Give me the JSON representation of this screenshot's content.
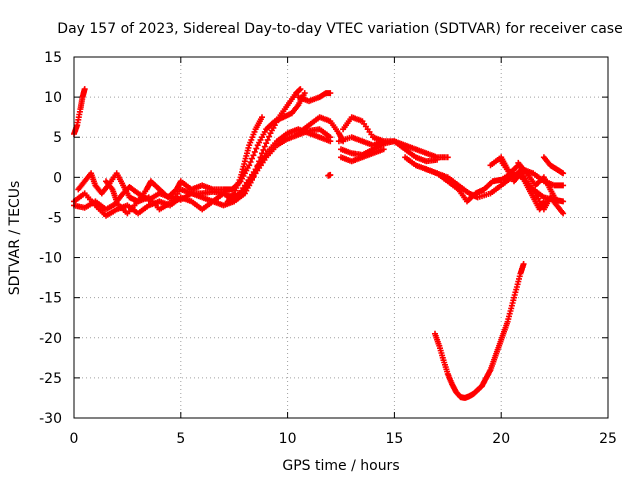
{
  "chart_data": {
    "type": "scatter",
    "title": "Day 157 of 2023, Sidereal Day-to-day VTEC variation (SDTVAR) for receiver case",
    "xlabel": "GPS time / hours",
    "ylabel": "SDTVAR / TECUs",
    "xlim": [
      0,
      25
    ],
    "ylim": [
      -30,
      15
    ],
    "xticks": [
      0,
      5,
      10,
      15,
      20,
      25
    ],
    "yticks": [
      -30,
      -25,
      -20,
      -15,
      -10,
      -5,
      0,
      5,
      10,
      15
    ],
    "grid": true,
    "marker": "+",
    "series": [
      {
        "name": "SDTVAR",
        "color": "#ff0000",
        "tracks": [
          [
            [
              0.0,
              5.4
            ],
            [
              0.15,
              6.5
            ],
            [
              0.3,
              8.5
            ],
            [
              0.4,
              10.0
            ],
            [
              0.5,
              11.0
            ]
          ],
          [
            [
              0.0,
              -3.0
            ],
            [
              0.5,
              -2.0
            ],
            [
              1.0,
              -3.5
            ],
            [
              1.5,
              -4.8
            ],
            [
              2.0,
              -4.0
            ],
            [
              2.5,
              -3.5
            ],
            [
              3.0,
              -4.5
            ],
            [
              3.5,
              -3.5
            ],
            [
              4.0,
              -3.0
            ],
            [
              4.5,
              -3.5
            ],
            [
              5.0,
              -2.5
            ],
            [
              5.5,
              -3.0
            ],
            [
              6.0,
              -4.0
            ],
            [
              6.5,
              -3.0
            ],
            [
              7.0,
              -2.0
            ],
            [
              7.5,
              -3.0
            ],
            [
              8.0,
              -2.0
            ],
            [
              8.4,
              0.0
            ],
            [
              8.8,
              3.0
            ],
            [
              9.2,
              5.5
            ],
            [
              9.6,
              7.5
            ],
            [
              10.0,
              9.0
            ],
            [
              10.4,
              10.5
            ],
            [
              10.6,
              11.0
            ]
          ],
          [
            [
              0.2,
              -1.5
            ],
            [
              0.5,
              -0.5
            ],
            [
              0.8,
              0.5
            ],
            [
              1.0,
              -1.0
            ],
            [
              1.3,
              -2.0
            ],
            [
              1.6,
              -1.0
            ],
            [
              2.0,
              0.5
            ],
            [
              2.3,
              -1.0
            ],
            [
              2.6,
              -2.5
            ],
            [
              3.0,
              -3.0
            ],
            [
              3.4,
              -1.5
            ],
            [
              3.6,
              -0.5
            ],
            [
              4.0,
              -1.5
            ],
            [
              4.4,
              -2.5
            ],
            [
              4.8,
              -1.5
            ],
            [
              5.0,
              -0.5
            ],
            [
              5.5,
              -1.5
            ],
            [
              6.0,
              -1.0
            ],
            [
              6.5,
              -1.5
            ],
            [
              7.0,
              -1.5
            ],
            [
              7.4,
              -1.5
            ],
            [
              7.8,
              -0.5
            ],
            [
              8.2,
              1.5
            ],
            [
              8.6,
              4.0
            ],
            [
              9.0,
              6.0
            ],
            [
              9.4,
              7.0
            ],
            [
              9.8,
              7.5
            ],
            [
              10.2,
              8.0
            ],
            [
              10.5,
              9.0
            ],
            [
              10.8,
              10.5
            ]
          ],
          [
            [
              0.0,
              -3.5
            ],
            [
              0.5,
              -3.8
            ],
            [
              1.0,
              -3.0
            ],
            [
              1.5,
              -4.0
            ],
            [
              2.0,
              -3.2
            ],
            [
              2.5,
              -4.5
            ],
            [
              3.0,
              -3.0
            ],
            [
              3.5,
              -2.5
            ],
            [
              4.0,
              -4.0
            ],
            [
              4.5,
              -3.2
            ],
            [
              5.0,
              -1.5
            ],
            [
              5.5,
              -2.0
            ],
            [
              6.0,
              -2.5
            ],
            [
              6.5,
              -3.0
            ],
            [
              7.0,
              -3.5
            ],
            [
              7.5,
              -3.0
            ],
            [
              8.0,
              -1.0
            ],
            [
              8.5,
              1.0
            ],
            [
              9.0,
              3.0
            ],
            [
              9.5,
              4.5
            ],
            [
              10.0,
              5.5
            ],
            [
              10.5,
              6.0
            ],
            [
              11.0,
              5.5
            ],
            [
              11.5,
              5.0
            ],
            [
              12.0,
              4.5
            ]
          ],
          [
            [
              1.5,
              -0.5
            ],
            [
              1.8,
              -1.5
            ],
            [
              2.0,
              -3.0
            ],
            [
              2.3,
              -2.0
            ],
            [
              2.6,
              -1.2
            ],
            [
              3.0,
              -2.0
            ],
            [
              3.5,
              -2.8
            ],
            [
              4.0,
              -2.0
            ],
            [
              4.5,
              -2.5
            ],
            [
              5.0,
              -2.8
            ],
            [
              5.5,
              -2.0
            ],
            [
              6.0,
              -2.0
            ],
            [
              6.5,
              -1.8
            ],
            [
              7.0,
              -2.0
            ],
            [
              7.5,
              -2.5
            ],
            [
              8.0,
              -1.5
            ],
            [
              8.5,
              0.5
            ],
            [
              9.0,
              2.5
            ],
            [
              9.5,
              4.0
            ],
            [
              10.0,
              4.8
            ],
            [
              10.5,
              5.3
            ],
            [
              11.0,
              5.8
            ],
            [
              11.5,
              6.0
            ],
            [
              12.0,
              5.0
            ]
          ],
          [
            [
              7.2,
              -3.0
            ],
            [
              7.5,
              -2.0
            ],
            [
              7.8,
              0.0
            ],
            [
              8.0,
              2.0
            ],
            [
              8.2,
              4.0
            ],
            [
              8.5,
              6.0
            ],
            [
              8.8,
              7.5
            ]
          ],
          [
            [
              10.5,
              10.0
            ],
            [
              11.0,
              9.5
            ],
            [
              11.5,
              10.0
            ],
            [
              11.8,
              10.5
            ],
            [
              12.0,
              10.5
            ]
          ],
          [
            [
              10.5,
              5.5
            ],
            [
              11.0,
              6.5
            ],
            [
              11.5,
              7.5
            ],
            [
              12.0,
              7.0
            ],
            [
              12.4,
              5.5
            ],
            [
              12.6,
              4.5
            ]
          ],
          [
            [
              12.6,
              6.0
            ],
            [
              13.0,
              7.5
            ],
            [
              13.5,
              7.0
            ],
            [
              14.0,
              5.0
            ],
            [
              14.5,
              4.5
            ]
          ],
          [
            [
              12.4,
              4.5
            ],
            [
              13.0,
              5.0
            ],
            [
              13.5,
              4.5
            ],
            [
              14.0,
              4.0
            ],
            [
              14.5,
              4.5
            ],
            [
              15.0,
              4.5
            ],
            [
              15.5,
              4.0
            ],
            [
              16.0,
              3.5
            ],
            [
              16.5,
              3.0
            ],
            [
              17.0,
              2.5
            ],
            [
              17.5,
              2.5
            ]
          ],
          [
            [
              12.5,
              3.5
            ],
            [
              13.0,
              3.0
            ],
            [
              13.5,
              2.8
            ],
            [
              14.0,
              3.5
            ],
            [
              14.5,
              4.2
            ],
            [
              15.0,
              4.5
            ],
            [
              15.5,
              3.5
            ],
            [
              16.0,
              2.5
            ],
            [
              16.5,
              2.0
            ],
            [
              17.0,
              2.2
            ]
          ],
          [
            [
              12.5,
              2.5
            ],
            [
              13.0,
              2.0
            ],
            [
              13.5,
              2.5
            ],
            [
              14.0,
              3.0
            ],
            [
              14.5,
              3.5
            ]
          ],
          [
            [
              15.5,
              2.5
            ],
            [
              16.0,
              1.5
            ],
            [
              16.5,
              1.0
            ],
            [
              17.0,
              0.5
            ],
            [
              17.5,
              0.0
            ],
            [
              18.0,
              -1.0
            ],
            [
              18.5,
              -2.0
            ],
            [
              18.9,
              -2.5
            ],
            [
              19.5,
              -2.0
            ],
            [
              20.0,
              -1.0
            ],
            [
              20.5,
              0.0
            ],
            [
              21.0,
              1.0
            ],
            [
              21.5,
              0.5
            ],
            [
              22.0,
              -0.5
            ],
            [
              22.5,
              -1.0
            ],
            [
              22.9,
              -1.0
            ]
          ],
          [
            [
              16.5,
              1.0
            ],
            [
              17.0,
              0.5
            ],
            [
              17.5,
              -0.5
            ],
            [
              18.0,
              -1.5
            ],
            [
              18.4,
              -3.0
            ],
            [
              18.8,
              -2.0
            ],
            [
              19.2,
              -1.5
            ],
            [
              19.6,
              -0.5
            ],
            [
              20.0,
              -0.3
            ],
            [
              20.5,
              0.5
            ],
            [
              21.0,
              0.0
            ],
            [
              21.5,
              -1.5
            ],
            [
              22.0,
              -2.5
            ],
            [
              22.5,
              -2.8
            ],
            [
              22.9,
              -3.0
            ]
          ],
          [
            [
              19.5,
              1.5
            ],
            [
              20.0,
              2.5
            ],
            [
              20.3,
              1.0
            ],
            [
              20.6,
              -0.5
            ],
            [
              20.9,
              0.5
            ],
            [
              21.2,
              -1.0
            ],
            [
              21.5,
              -2.5
            ],
            [
              21.8,
              -4.0
            ],
            [
              22.0,
              -3.0
            ]
          ],
          [
            [
              20.0,
              2.0
            ],
            [
              20.4,
              0.5
            ],
            [
              20.8,
              1.5
            ],
            [
              21.2,
              -0.5
            ],
            [
              21.6,
              -2.0
            ],
            [
              22.0,
              -4.0
            ],
            [
              22.3,
              -2.5
            ],
            [
              22.6,
              -3.5
            ],
            [
              22.9,
              -4.5
            ]
          ],
          [
            [
              20.8,
              1.8
            ],
            [
              21.2,
              0.5
            ],
            [
              21.6,
              -1.0
            ],
            [
              22.0,
              0.0
            ],
            [
              22.3,
              -1.5
            ],
            [
              22.6,
              -3.0
            ]
          ],
          [
            [
              22.0,
              2.5
            ],
            [
              22.3,
              1.5
            ],
            [
              22.6,
              1.0
            ],
            [
              22.9,
              0.5
            ]
          ],
          [
            [
              16.9,
              -19.5
            ],
            [
              17.1,
              -21.0
            ],
            [
              17.3,
              -22.8
            ],
            [
              17.5,
              -24.5
            ],
            [
              17.7,
              -25.8
            ],
            [
              17.9,
              -26.8
            ],
            [
              18.1,
              -27.4
            ],
            [
              18.3,
              -27.5
            ],
            [
              18.5,
              -27.3
            ],
            [
              18.7,
              -27.0
            ],
            [
              18.9,
              -26.5
            ],
            [
              19.1,
              -26.0
            ],
            [
              19.3,
              -25.0
            ],
            [
              19.5,
              -24.0
            ],
            [
              19.7,
              -22.5
            ],
            [
              19.9,
              -21.0
            ],
            [
              20.1,
              -19.5
            ],
            [
              20.3,
              -18.0
            ],
            [
              20.5,
              -16.0
            ],
            [
              20.7,
              -14.0
            ],
            [
              20.9,
              -12.0
            ],
            [
              21.05,
              -10.8
            ]
          ],
          [
            [
              11.9,
              0.2
            ],
            [
              12.0,
              0.3
            ]
          ]
        ]
      }
    ]
  }
}
